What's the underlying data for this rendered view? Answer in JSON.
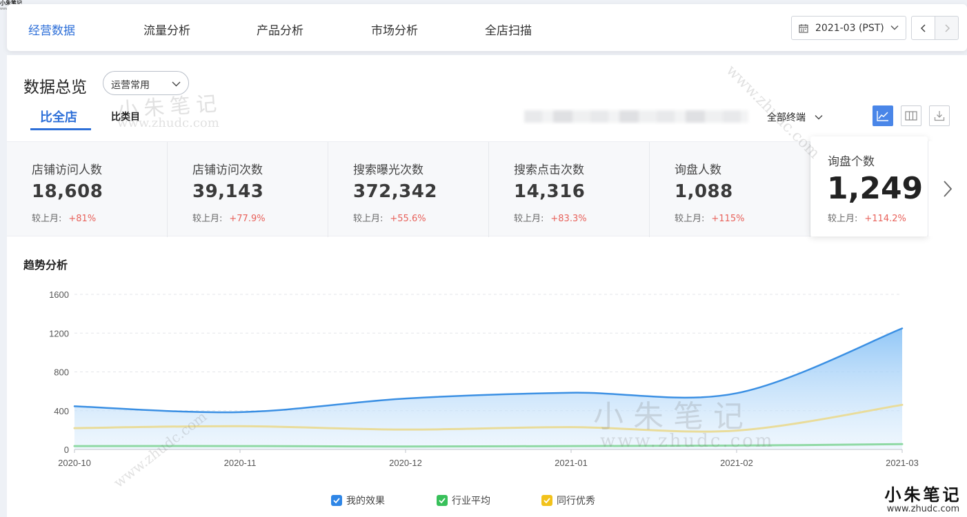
{
  "brand": {
    "name": "小朱笔记",
    "url": "www.zhudc.com"
  },
  "nav": {
    "tabs": [
      "经营数据",
      "流量分析",
      "产品分析",
      "市场分析",
      "全店扫描"
    ],
    "active_index": 0,
    "date": "2021-03 (PST)"
  },
  "overview": {
    "title": "数据总览",
    "preset": "运营常用",
    "compare_tabs": [
      "比全店",
      "比类目"
    ],
    "terminal": "全部终端"
  },
  "kpis": [
    {
      "label": "店铺访问人数",
      "value": "18,608",
      "cmp_label": "较上月:",
      "cmp_pct": "+81%"
    },
    {
      "label": "店铺访问次数",
      "value": "39,143",
      "cmp_label": "较上月:",
      "cmp_pct": "+77.9%"
    },
    {
      "label": "搜索曝光次数",
      "value": "372,342",
      "cmp_label": "较上月:",
      "cmp_pct": "+55.6%"
    },
    {
      "label": "搜索点击次数",
      "value": "14,316",
      "cmp_label": "较上月:",
      "cmp_pct": "+83.3%"
    },
    {
      "label": "询盘人数",
      "value": "1,088",
      "cmp_label": "较上月:",
      "cmp_pct": "+115%"
    }
  ],
  "kpi_featured": {
    "label": "询盘个数",
    "value": "1,249",
    "cmp_label": "较上月:",
    "cmp_pct": "+114.2%"
  },
  "trend": {
    "title": "趋势分析"
  },
  "legend": [
    {
      "name": "我的效果",
      "color": "#2f86e6"
    },
    {
      "name": "行业平均",
      "color": "#38c05a"
    },
    {
      "name": "同行优秀",
      "color": "#f2c21b"
    }
  ],
  "chart_data": {
    "type": "area",
    "x": [
      "2020-10",
      "2020-11",
      "2020-12",
      "2021-01",
      "2021-02",
      "2021-03"
    ],
    "ylim": [
      0,
      1600
    ],
    "yticks": [
      "0",
      "400",
      "800",
      "1200",
      "1600"
    ],
    "grid": true,
    "legend_position": "bottom",
    "series": [
      {
        "name": "我的效果",
        "values": [
          445,
          385,
          525,
          585,
          580,
          1249
        ],
        "color": "#3a8fe3"
      },
      {
        "name": "行业平均",
        "values": [
          35,
          35,
          30,
          35,
          40,
          55
        ],
        "color": "#8fd9a4"
      },
      {
        "name": "同行优秀",
        "values": [
          220,
          240,
          205,
          230,
          195,
          460
        ],
        "color": "#e9dc9a"
      }
    ]
  }
}
